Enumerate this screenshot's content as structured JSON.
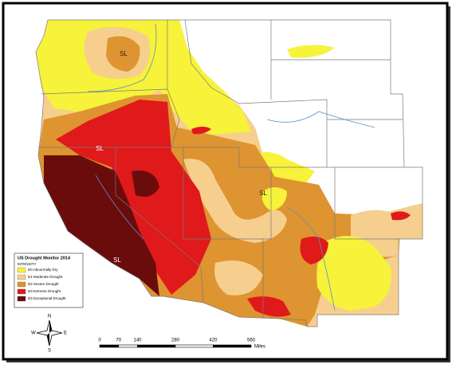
{
  "map": {
    "labels": [
      "SL",
      "SL",
      "SL",
      "SL"
    ],
    "legend": {
      "title": "US Drought Monitor 2014",
      "subtitle": "INTENSITY",
      "items": [
        {
          "label": "D0 Abnormally Dry",
          "color": "#f7f23a"
        },
        {
          "label": "D1 Moderate Drought",
          "color": "#f6cf8e"
        },
        {
          "label": "D2 Severe Drought",
          "color": "#de9430"
        },
        {
          "label": "D3 Extreme Drought",
          "color": "#e0191b"
        },
        {
          "label": "D4 Exceptional Drought",
          "color": "#6b0c0c"
        }
      ]
    },
    "compass": {
      "north": "N",
      "south": "S",
      "east": "E",
      "west": "W"
    },
    "scale": {
      "ticks": [
        0,
        70,
        140,
        280,
        420,
        560
      ],
      "unit": "Miles"
    }
  }
}
